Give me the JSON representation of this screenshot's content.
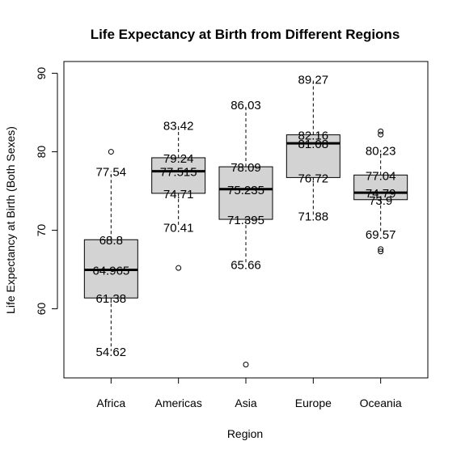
{
  "chart_data": {
    "type": "boxplot",
    "title": "Life Expectancy at Birth from Different Regions",
    "xlabel": "Region",
    "ylabel": "Life Expectancy at Birth (Both Sexes)",
    "ylim": [
      51.2,
      91.5
    ],
    "yticks": [
      60,
      70,
      80,
      90
    ],
    "box_color": "#d3d3d3",
    "categories": [
      "Africa",
      "Americas",
      "Asia",
      "Europe",
      "Oceania"
    ],
    "boxes": [
      {
        "name": "Africa",
        "whisker_low": 54.62,
        "q1": 61.38,
        "median": 64.965,
        "q3": 68.8,
        "whisker_high": 77.54,
        "outliers": [
          80.0
        ],
        "labels": [
          "77.54",
          "68.8",
          "64.965",
          "61.38",
          "54.62"
        ]
      },
      {
        "name": "Americas",
        "whisker_low": 70.41,
        "q1": 74.71,
        "median": 77.515,
        "q3": 79.24,
        "whisker_high": 83.42,
        "outliers": [
          65.2
        ],
        "labels": [
          "83.42",
          "79.24",
          "77.515",
          "74.71",
          "70.41"
        ]
      },
      {
        "name": "Asia",
        "whisker_low": 65.66,
        "q1": 71.395,
        "median": 75.235,
        "q3": 78.09,
        "whisker_high": 86.03,
        "outliers": [
          52.9
        ],
        "labels": [
          "86.03",
          "78.09",
          "75.235",
          "71.395",
          "65.66"
        ]
      },
      {
        "name": "Europe",
        "whisker_low": 71.88,
        "q1": 76.72,
        "median": 81.08,
        "q3": 82.16,
        "whisker_high": 89.27,
        "outliers": [],
        "labels": [
          "89.27",
          "82.16",
          "81.08",
          "76.72",
          "71.88"
        ]
      },
      {
        "name": "Oceania",
        "whisker_low": 69.57,
        "q1": 73.9,
        "median": 74.79,
        "q3": 77.04,
        "whisker_high": 80.23,
        "outliers": [
          82.2,
          82.6,
          67.3,
          67.6
        ],
        "labels": [
          "80.23",
          "77.04",
          "74.79",
          "73.9",
          "69.57"
        ]
      }
    ]
  }
}
